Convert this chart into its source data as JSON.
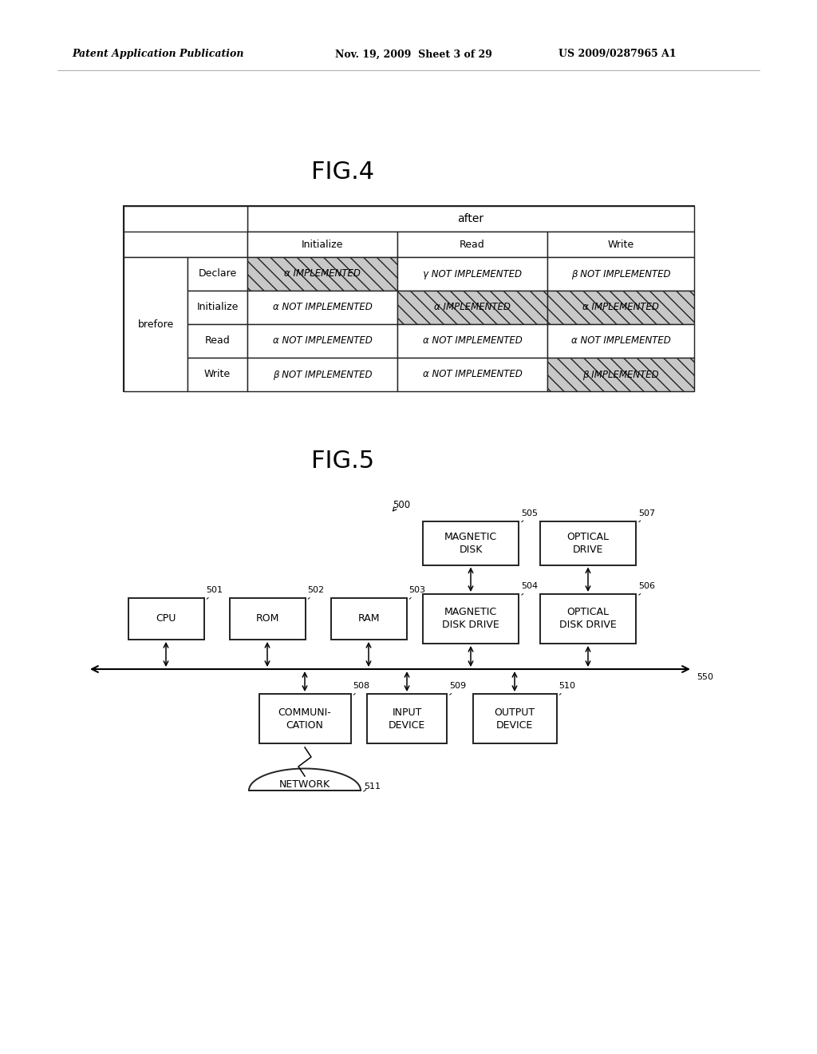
{
  "header_text_left": "Patent Application Publication",
  "header_text_mid": "Nov. 19, 2009  Sheet 3 of 29",
  "header_text_right": "US 2009/0287965 A1",
  "fig4_title": "FIG.4",
  "fig5_title": "FIG.5",
  "table": {
    "after_label": "after",
    "brefore_label": "brefore",
    "col_headers": [
      "Initialize",
      "Read",
      "Write"
    ],
    "row_labels": [
      "Declare",
      "Initialize",
      "Read",
      "Write"
    ],
    "cells": [
      [
        "α IMPLEMENTED",
        "γ NOT IMPLEMENTED",
        "β NOT IMPLEMENTED"
      ],
      [
        "α NOT IMPLEMENTED",
        "α IMPLEMENTED",
        "α IMPLEMENTED"
      ],
      [
        "α NOT IMPLEMENTED",
        "α NOT IMPLEMENTED",
        "α NOT IMPLEMENTED"
      ],
      [
        "β NOT IMPLEMENTED",
        "α NOT IMPLEMENTED",
        "β IMPLEMENTED"
      ]
    ],
    "shaded": [
      [
        true,
        false,
        false
      ],
      [
        false,
        true,
        true
      ],
      [
        false,
        false,
        false
      ],
      [
        false,
        false,
        true
      ]
    ]
  },
  "bg_color": "#ffffff",
  "edge_color": "#222222",
  "text_color": "#000000"
}
